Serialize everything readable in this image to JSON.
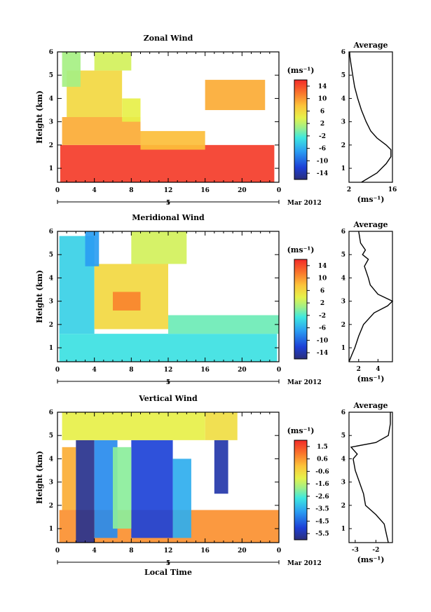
{
  "chart_data": [
    {
      "type": "heatmap",
      "title": "Zonal Wind",
      "ylabel": "Height (km)",
      "xlabel": "",
      "x_ticks": [
        "0",
        "4",
        "8",
        "12",
        "16",
        "20",
        "0"
      ],
      "y_ticks": [
        "1",
        "2",
        "3",
        "4",
        "5",
        "6"
      ],
      "xlim": [
        0,
        24
      ],
      "ylim": [
        0.4,
        6.0
      ],
      "date_label": "5",
      "month_label": "Mar 2012",
      "colorbar": {
        "unit": "(ms⁻¹)",
        "ticks": [
          "14",
          "10",
          "6",
          "2",
          "-2",
          "-6",
          "-10",
          "-14"
        ],
        "range": [
          -16,
          16
        ]
      },
      "regions": [
        {
          "x": [
            0.3,
            23.5
          ],
          "y": [
            0.4,
            2.0
          ],
          "v": 15
        },
        {
          "x": [
            0.5,
            9.0
          ],
          "y": [
            2.0,
            3.2
          ],
          "v": 9
        },
        {
          "x": [
            1.0,
            7.0
          ],
          "y": [
            3.2,
            5.2
          ],
          "v": 6
        },
        {
          "x": [
            7.0,
            9.0
          ],
          "y": [
            3.0,
            4.0
          ],
          "v": 4
        },
        {
          "x": [
            4.0,
            8.0
          ],
          "y": [
            5.2,
            6.0
          ],
          "v": 3
        },
        {
          "x": [
            9.0,
            16.0
          ],
          "y": [
            1.8,
            2.6
          ],
          "v": 8
        },
        {
          "x": [
            16.0,
            22.5
          ],
          "y": [
            3.5,
            4.8
          ],
          "v": 9
        },
        {
          "x": [
            0.5,
            2.5
          ],
          "y": [
            4.5,
            6.0
          ],
          "v": 1
        }
      ],
      "average_profile": {
        "title": "Average",
        "xlabel": "(ms⁻¹)",
        "x_ticks": [
          "2",
          "16"
        ],
        "xlim": [
          2,
          16
        ],
        "y": [
          0.4,
          0.8,
          1.2,
          1.5,
          1.8,
          2.0,
          2.3,
          2.6,
          3.0,
          3.5,
          4.0,
          4.5,
          5.0,
          5.5,
          5.8,
          6.0
        ],
        "x": [
          6,
          11,
          14,
          15.5,
          15.5,
          14,
          11,
          9,
          7.5,
          6.0,
          4.8,
          3.8,
          3.2,
          2.6,
          2.3,
          2.2
        ]
      }
    },
    {
      "type": "heatmap",
      "title": "Meridional Wind",
      "ylabel": "Height (km)",
      "xlabel": "",
      "x_ticks": [
        "0",
        "4",
        "8",
        "12",
        "16",
        "20",
        "0"
      ],
      "y_ticks": [
        "1",
        "2",
        "3",
        "4",
        "5",
        "6"
      ],
      "xlim": [
        0,
        24
      ],
      "ylim": [
        0.4,
        6.0
      ],
      "date_label": "5",
      "month_label": "Mar 2012",
      "colorbar": {
        "unit": "(ms⁻¹)",
        "ticks": [
          "14",
          "10",
          "6",
          "2",
          "-2",
          "-6",
          "-10",
          "-14"
        ],
        "range": [
          -16,
          16
        ]
      },
      "regions": [
        {
          "x": [
            0.2,
            23.8
          ],
          "y": [
            0.4,
            1.6
          ],
          "v": -3
        },
        {
          "x": [
            0.2,
            4.0
          ],
          "y": [
            1.6,
            5.8
          ],
          "v": -4
        },
        {
          "x": [
            4.0,
            12.0
          ],
          "y": [
            1.8,
            4.6
          ],
          "v": 6
        },
        {
          "x": [
            6.0,
            9.0
          ],
          "y": [
            2.6,
            3.4
          ],
          "v": 11
        },
        {
          "x": [
            8.0,
            14.0
          ],
          "y": [
            4.6,
            6.0
          ],
          "v": 3
        },
        {
          "x": [
            12.0,
            24.0
          ],
          "y": [
            1.6,
            2.4
          ],
          "v": -1
        },
        {
          "x": [
            3.0,
            4.5
          ],
          "y": [
            4.5,
            6.0
          ],
          "v": -7
        }
      ],
      "average_profile": {
        "title": "Average",
        "xlabel": "(ms⁻¹)",
        "x_ticks": [
          "2",
          "4"
        ],
        "xlim": [
          1,
          5.5
        ],
        "y": [
          0.4,
          0.7,
          1.0,
          1.5,
          2.0,
          2.5,
          2.8,
          3.0,
          3.3,
          3.7,
          4.0,
          4.5,
          4.8,
          5.0,
          5.2,
          5.5,
          6.0
        ],
        "x": [
          1.0,
          1.3,
          1.6,
          2.0,
          2.5,
          3.6,
          5.0,
          5.5,
          4.0,
          3.2,
          3.0,
          2.6,
          3.0,
          2.4,
          2.7,
          2.2,
          2.0
        ]
      }
    },
    {
      "type": "heatmap",
      "title": "Vertical Wind",
      "ylabel": "Height (km)",
      "xlabel": "Local Time",
      "x_ticks": [
        "0",
        "4",
        "8",
        "12",
        "16",
        "20",
        "0"
      ],
      "y_ticks": [
        "1",
        "2",
        "3",
        "4",
        "5",
        "6"
      ],
      "xlim": [
        0,
        24
      ],
      "ylim": [
        0.4,
        6.0
      ],
      "date_label": "5",
      "month_label": "Mar 2012",
      "colorbar": {
        "unit": "(ms⁻¹)",
        "ticks": [
          "1.5",
          "0.6",
          "-0.6",
          "-1.6",
          "-2.6",
          "-3.5",
          "-4.5",
          "-5.5"
        ],
        "range": [
          -6,
          2
        ]
      },
      "regions": [
        {
          "x": [
            0.2,
            24.0
          ],
          "y": [
            0.4,
            1.8
          ],
          "v": 0.6
        },
        {
          "x": [
            0.5,
            2.0
          ],
          "y": [
            1.8,
            4.5
          ],
          "v": 0.2
        },
        {
          "x": [
            2.0,
            4.0
          ],
          "y": [
            0.4,
            4.8
          ],
          "v": -5.8
        },
        {
          "x": [
            4.0,
            6.5
          ],
          "y": [
            0.6,
            4.8
          ],
          "v": -4.0
        },
        {
          "x": [
            8.0,
            12.5
          ],
          "y": [
            0.6,
            4.8
          ],
          "v": -5.0
        },
        {
          "x": [
            12.5,
            14.5
          ],
          "y": [
            0.6,
            4.0
          ],
          "v": -3.5
        },
        {
          "x": [
            17.0,
            18.5
          ],
          "y": [
            2.5,
            4.8
          ],
          "v": -5.5
        },
        {
          "x": [
            6.0,
            8.0
          ],
          "y": [
            1.0,
            4.5
          ],
          "v": -2.0
        },
        {
          "x": [
            0.5,
            16.0
          ],
          "y": [
            4.8,
            6.0
          ],
          "v": -1.0
        },
        {
          "x": [
            16.0,
            19.5
          ],
          "y": [
            4.8,
            6.0
          ],
          "v": -0.6
        }
      ],
      "average_profile": {
        "title": "Average",
        "xlabel": "(ms⁻¹)",
        "x_ticks": [
          "-3",
          "-2"
        ],
        "xlim": [
          -3.3,
          -1.2
        ],
        "y": [
          0.4,
          0.8,
          1.2,
          1.6,
          2.0,
          2.5,
          3.0,
          3.5,
          4.0,
          4.2,
          4.5,
          4.7,
          5.0,
          5.5,
          6.0
        ],
        "x": [
          -1.4,
          -1.5,
          -1.6,
          -2.0,
          -2.5,
          -2.6,
          -2.8,
          -3.0,
          -3.1,
          -2.9,
          -3.2,
          -2.0,
          -1.4,
          -1.3,
          -1.3
        ]
      }
    }
  ]
}
